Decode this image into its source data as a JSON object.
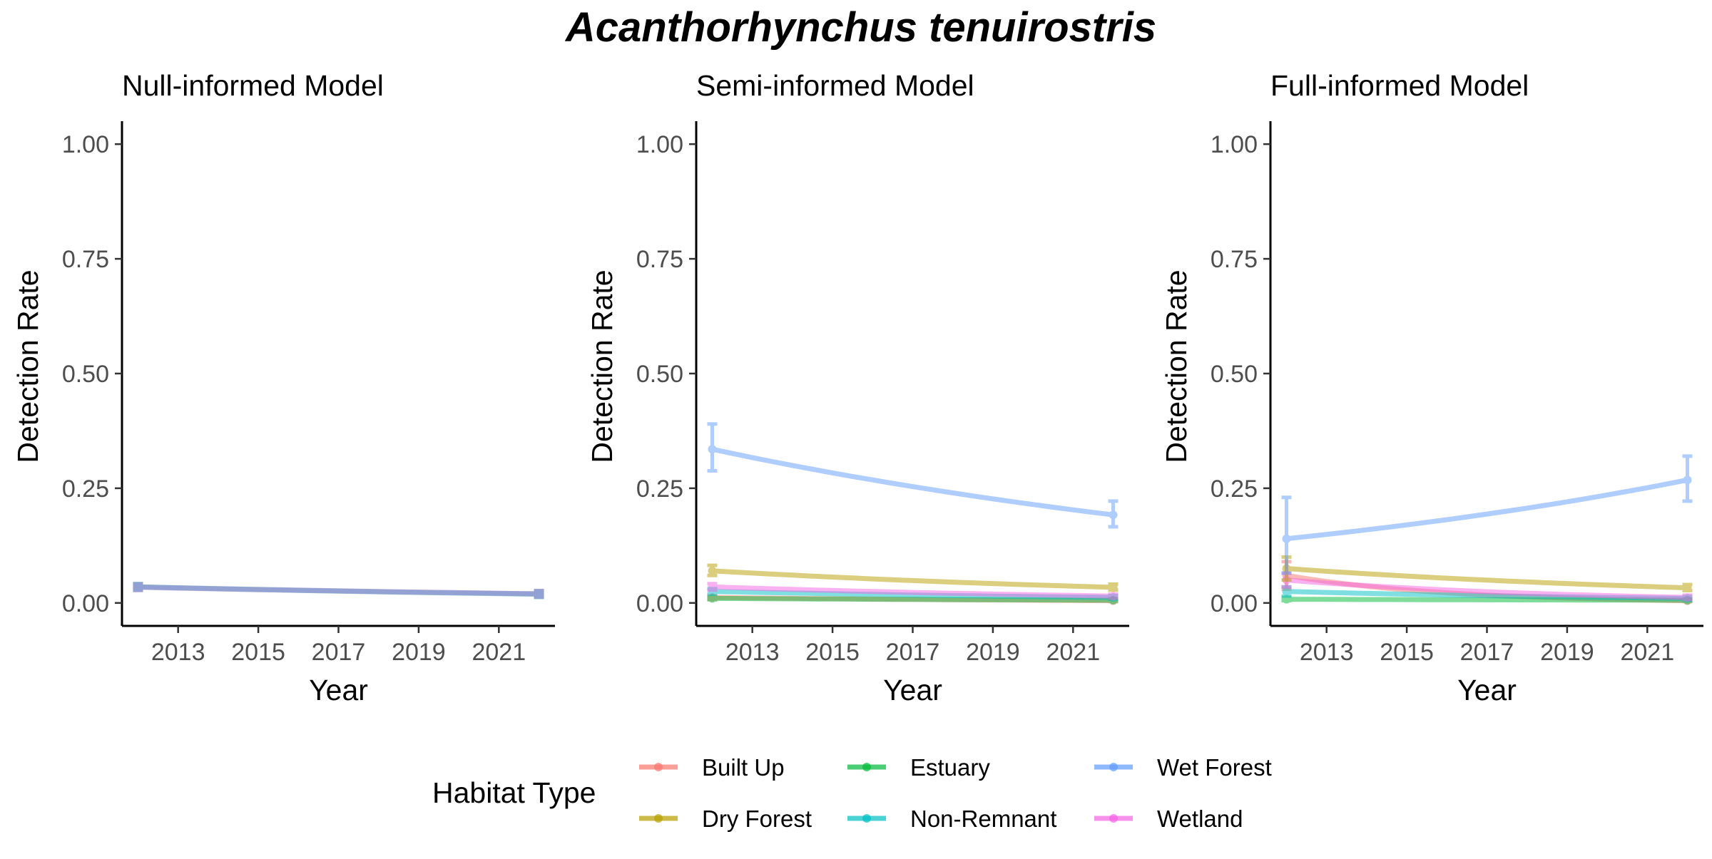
{
  "chart_data": {
    "type": "line",
    "title": "Acanthorhynchus tenuirostris",
    "legend": {
      "title": "Habitat Type",
      "placement": "bottom",
      "items": [
        {
          "name": "Built Up",
          "color": "#F8766D"
        },
        {
          "name": "Dry Forest",
          "color": "#B79F00"
        },
        {
          "name": "Estuary",
          "color": "#00BA38"
        },
        {
          "name": "Non-Remnant",
          "color": "#00BFC4"
        },
        {
          "name": "Wet Forest",
          "color": "#619CFF"
        },
        {
          "name": "Wetland",
          "color": "#F564E3"
        }
      ]
    },
    "panels": [
      {
        "title": "Null-informed Model",
        "xlabel": "Year",
        "ylabel": "Detection Rate",
        "xlim": [
          2011.6,
          2022.4
        ],
        "ylim": [
          -0.05,
          1.05
        ],
        "x_ticks": [
          "2013",
          "2015",
          "2017",
          "2019",
          "2021"
        ],
        "y_ticks": [
          "0.00",
          "0.25",
          "0.50",
          "0.75",
          "1.00"
        ],
        "grid": false,
        "series": [
          {
            "color": "#7F7FD0",
            "x": [
              2012,
              2022
            ],
            "y": [
              0.035,
              0.02
            ],
            "lo": [
              0.031,
              0.017
            ],
            "hi": [
              0.039,
              0.023
            ]
          },
          {
            "color": "#33A7A8",
            "x": [
              2012,
              2022
            ],
            "y": [
              0.035,
              0.019
            ],
            "lo": [
              0.031,
              0.016
            ],
            "hi": [
              0.039,
              0.022
            ]
          },
          {
            "color": "#B08FE0",
            "x": [
              2012,
              2022
            ],
            "y": [
              0.034,
              0.02
            ],
            "lo": [
              0.03,
              0.017
            ],
            "hi": [
              0.038,
              0.023
            ]
          }
        ]
      },
      {
        "title": "Semi-informed Model",
        "xlabel": "Year",
        "ylabel": "Detection Rate",
        "xlim": [
          2011.6,
          2022.4
        ],
        "ylim": [
          -0.05,
          1.05
        ],
        "x_ticks": [
          "2013",
          "2015",
          "2017",
          "2019",
          "2021"
        ],
        "y_ticks": [
          "0.00",
          "0.25",
          "0.50",
          "0.75",
          "1.00"
        ],
        "grid": false,
        "series": [
          {
            "name": "Built Up",
            "color": "#F8766D",
            "x": [
              2012,
              2022
            ],
            "y": [
              0.012,
              0.005
            ],
            "lo": [
              0.008,
              0.003
            ],
            "hi": [
              0.016,
              0.008
            ]
          },
          {
            "name": "Estuary",
            "color": "#00BA38",
            "x": [
              2012,
              2022
            ],
            "y": [
              0.01,
              0.006
            ],
            "lo": [
              0.007,
              0.004
            ],
            "hi": [
              0.013,
              0.009
            ]
          },
          {
            "name": "Non-Remnant",
            "color": "#00BFC4",
            "x": [
              2012,
              2022
            ],
            "y": [
              0.025,
              0.012
            ],
            "lo": [
              0.019,
              0.008
            ],
            "hi": [
              0.031,
              0.016
            ]
          },
          {
            "name": "Wetland",
            "color": "#F564E3",
            "x": [
              2012,
              2022
            ],
            "y": [
              0.035,
              0.015
            ],
            "lo": [
              0.028,
              0.011
            ],
            "hi": [
              0.042,
              0.019
            ]
          },
          {
            "name": "Dry Forest",
            "color": "#B79F00",
            "x": [
              2012,
              2022
            ],
            "y": [
              0.07,
              0.034
            ],
            "lo": [
              0.06,
              0.028
            ],
            "hi": [
              0.082,
              0.041
            ]
          },
          {
            "name": "Wet Forest",
            "color": "#619CFF",
            "x": [
              2012,
              2022
            ],
            "y": [
              0.335,
              0.192
            ],
            "lo": [
              0.288,
              0.166
            ],
            "hi": [
              0.39,
              0.222
            ]
          }
        ]
      },
      {
        "title": "Full-informed Model",
        "xlabel": "Year",
        "ylabel": "Detection Rate",
        "xlim": [
          2011.6,
          2022.4
        ],
        "ylim": [
          -0.05,
          1.05
        ],
        "x_ticks": [
          "2013",
          "2015",
          "2017",
          "2019",
          "2021"
        ],
        "y_ticks": [
          "0.00",
          "0.25",
          "0.50",
          "0.75",
          "1.00"
        ],
        "grid": false,
        "series": [
          {
            "name": "Built Up",
            "color": "#F8766D",
            "x": [
              2012,
              2022
            ],
            "y": [
              0.06,
              0.005
            ],
            "lo": [
              0.03,
              0.003
            ],
            "hi": [
              0.09,
              0.008
            ]
          },
          {
            "name": "Estuary",
            "color": "#00BA38",
            "x": [
              2012,
              2022
            ],
            "y": [
              0.008,
              0.006
            ],
            "lo": [
              0.005,
              0.004
            ],
            "hi": [
              0.012,
              0.009
            ]
          },
          {
            "name": "Non-Remnant",
            "color": "#00BFC4",
            "x": [
              2012,
              2022
            ],
            "y": [
              0.025,
              0.01
            ],
            "lo": [
              0.015,
              0.006
            ],
            "hi": [
              0.035,
              0.014
            ]
          },
          {
            "name": "Wetland",
            "color": "#F564E3",
            "x": [
              2012,
              2022
            ],
            "y": [
              0.05,
              0.012
            ],
            "lo": [
              0.035,
              0.008
            ],
            "hi": [
              0.065,
              0.017
            ]
          },
          {
            "name": "Dry Forest",
            "color": "#B79F00",
            "x": [
              2012,
              2022
            ],
            "y": [
              0.075,
              0.033
            ],
            "lo": [
              0.05,
              0.027
            ],
            "hi": [
              0.1,
              0.04
            ]
          },
          {
            "name": "Wet Forest",
            "color": "#619CFF",
            "x": [
              2012,
              2022
            ],
            "y": [
              0.14,
              0.268
            ],
            "lo": [
              0.065,
              0.222
            ],
            "hi": [
              0.23,
              0.32
            ]
          }
        ]
      }
    ]
  }
}
